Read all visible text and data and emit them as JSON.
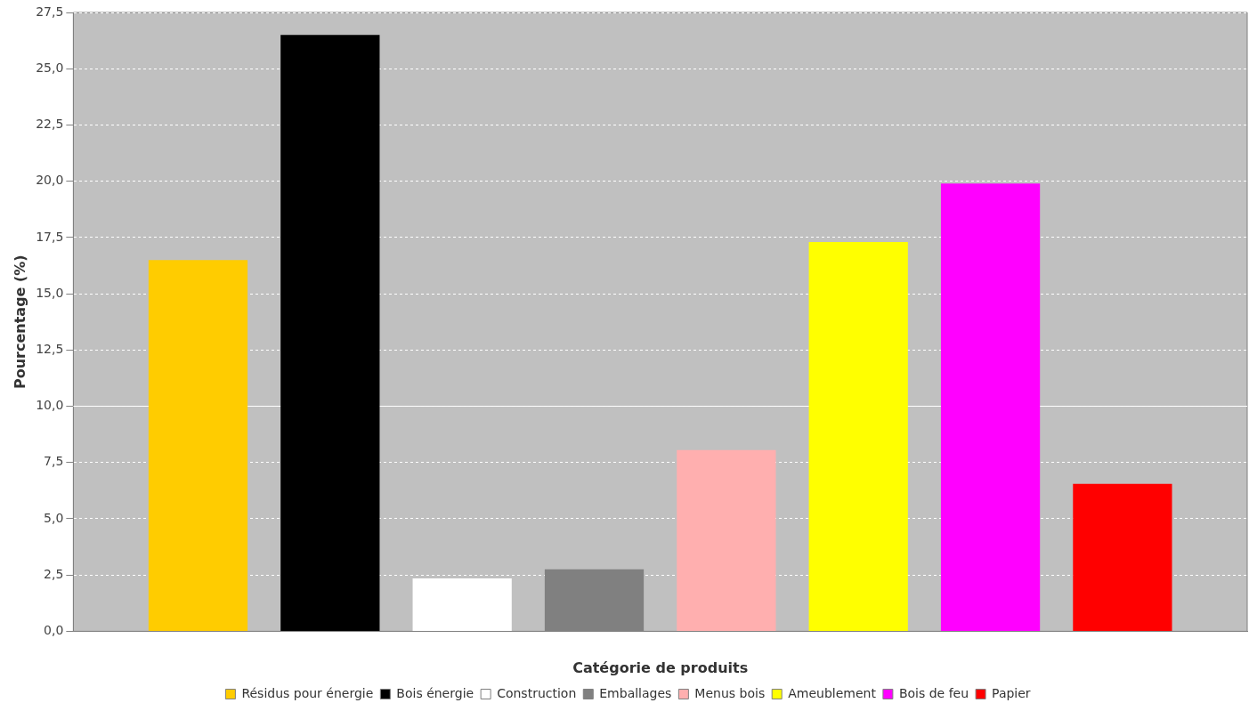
{
  "chart_data": {
    "type": "bar",
    "xlabel": "Catégorie de produits",
    "ylabel": "Pourcentage (%)",
    "categories": [
      null
    ],
    "series": [
      {
        "name": "Résidus pour énergie",
        "color": "#ffcc00",
        "values": [
          16.5
        ]
      },
      {
        "name": "Bois énergie",
        "color": "#000000",
        "values": [
          26.5
        ]
      },
      {
        "name": "Construction",
        "color": "#ffffff",
        "values": [
          2.35
        ]
      },
      {
        "name": "Emballages",
        "color": "#808080",
        "values": [
          2.75
        ]
      },
      {
        "name": "Menus bois",
        "color": "#ffafaf",
        "values": [
          8.05
        ]
      },
      {
        "name": "Ameublement",
        "color": "#ffff00",
        "values": [
          17.3
        ]
      },
      {
        "name": "Bois de feu",
        "color": "#ff00ff",
        "values": [
          19.9
        ]
      },
      {
        "name": "Papier",
        "color": "#ff0000",
        "values": [
          6.55
        ]
      }
    ],
    "ylim": [
      0,
      27.5
    ],
    "yticks": [
      {
        "value": 0,
        "label": "0,0"
      },
      {
        "value": 2.5,
        "label": "2,5"
      },
      {
        "value": 5,
        "label": "5,0"
      },
      {
        "value": 7.5,
        "label": "7,5"
      },
      {
        "value": 10,
        "label": "10,0"
      },
      {
        "value": 12.5,
        "label": "12,5"
      },
      {
        "value": 15,
        "label": "15,0"
      },
      {
        "value": 17.5,
        "label": "17,5"
      },
      {
        "value": 20,
        "label": "20,0"
      },
      {
        "value": 22.5,
        "label": "22,5"
      },
      {
        "value": 25,
        "label": "25,0"
      },
      {
        "value": 27.5,
        "label": "27,5"
      }
    ],
    "ref_lines": [
      {
        "axis": "y",
        "value": 10,
        "color": "#ffffff",
        "line_style": "solid"
      }
    ],
    "grid": "y",
    "legend": "bottom"
  }
}
